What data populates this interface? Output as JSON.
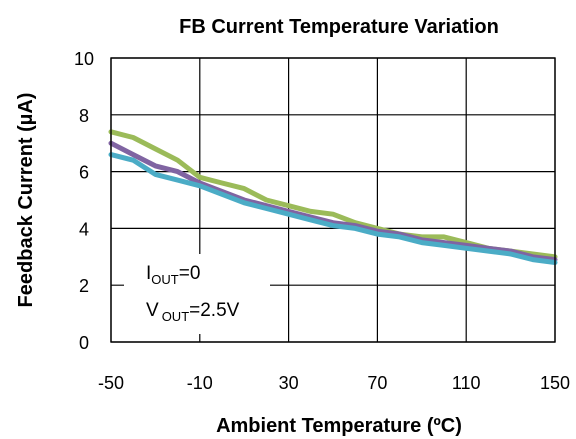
{
  "chart_data": {
    "type": "line",
    "title": "FB Current Temperature Variation",
    "xlabel": "Ambient Temperature (ºC)",
    "ylabel": "Feedback Current (µA)",
    "xlim": [
      -50,
      150
    ],
    "ylim": [
      0,
      10
    ],
    "xticks": [
      -50,
      -10,
      30,
      70,
      110,
      150
    ],
    "yticks": [
      0,
      2,
      4,
      6,
      8,
      10
    ],
    "grid": true,
    "annotations": [
      {
        "prefix": "I",
        "sub": "OUT",
        "suffix": "=0"
      },
      {
        "prefix": "V",
        "sub": "OUT",
        "suffix": "=2.5V"
      }
    ],
    "series": [
      {
        "color": "#9bbb59",
        "x": [
          -50,
          -40,
          -30,
          -20,
          -10,
          0,
          10,
          20,
          30,
          40,
          50,
          60,
          70,
          80,
          90,
          100,
          110,
          120,
          130,
          140,
          150
        ],
        "y": [
          7.4,
          7.2,
          6.8,
          6.4,
          5.8,
          5.6,
          5.4,
          5.0,
          4.8,
          4.6,
          4.5,
          4.2,
          4.0,
          3.8,
          3.7,
          3.7,
          3.5,
          3.3,
          3.2,
          3.1,
          3.0
        ]
      },
      {
        "color": "#8064a2",
        "x": [
          -50,
          -40,
          -30,
          -20,
          -10,
          0,
          10,
          20,
          30,
          40,
          50,
          60,
          70,
          80,
          90,
          100,
          110,
          120,
          130,
          140,
          150
        ],
        "y": [
          7.0,
          6.6,
          6.2,
          6.0,
          5.6,
          5.3,
          5.0,
          4.8,
          4.6,
          4.4,
          4.2,
          4.1,
          3.9,
          3.8,
          3.6,
          3.5,
          3.4,
          3.3,
          3.2,
          3.0,
          2.9
        ]
      },
      {
        "color": "#4bacc6",
        "x": [
          -50,
          -40,
          -30,
          -20,
          -10,
          0,
          10,
          20,
          30,
          40,
          50,
          60,
          70,
          80,
          90,
          100,
          110,
          120,
          130,
          140,
          150
        ],
        "y": [
          6.6,
          6.4,
          5.9,
          5.7,
          5.5,
          5.2,
          4.9,
          4.7,
          4.5,
          4.3,
          4.1,
          4.0,
          3.8,
          3.7,
          3.5,
          3.4,
          3.3,
          3.2,
          3.1,
          2.9,
          2.8
        ]
      }
    ]
  }
}
